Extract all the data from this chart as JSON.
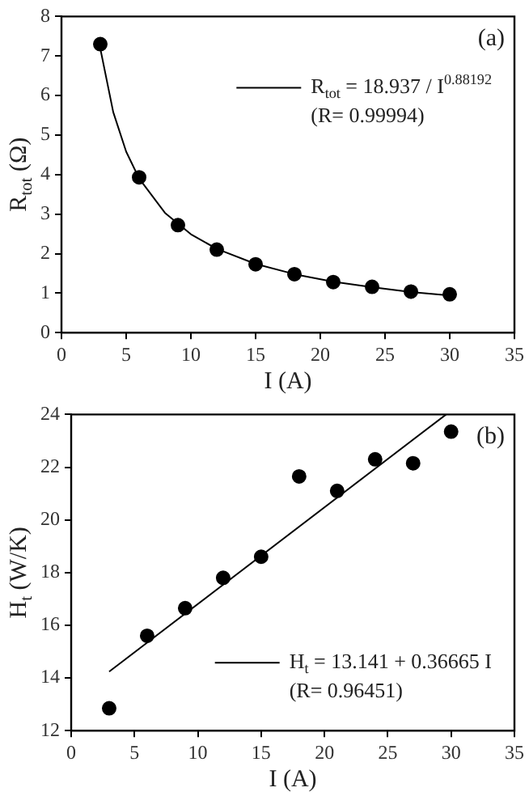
{
  "chart_data": [
    {
      "type": "scatter",
      "xlabel": "I (A)",
      "ylabel": "R$_{tot}$ (Ω)",
      "x": [
        3,
        6,
        9,
        12,
        15,
        18,
        21,
        24,
        27,
        30
      ],
      "series": [
        {
          "type": "scatter",
          "color": "#000000",
          "marker": "circle",
          "values": [
            7.3,
            3.93,
            2.72,
            2.1,
            1.73,
            1.48,
            1.28,
            1.16,
            1.04,
            0.97
          ]
        },
        {
          "type": "line",
          "name": "R$_{tot}$ = 18.937 / I$^{0.88192}$",
          "color": "#000000",
          "marker": "none",
          "line_style": "solid",
          "x": [
            3,
            4,
            5,
            6,
            8,
            10,
            12,
            15,
            18,
            21,
            24,
            27,
            30
          ],
          "values": [
            7.19,
            5.58,
            4.58,
            3.9,
            3.03,
            2.49,
            2.12,
            1.74,
            1.48,
            1.29,
            1.15,
            1.03,
            0.94
          ]
        }
      ],
      "annotations": [
        "(R= 0.99994)",
        "(a)"
      ],
      "xlim": [
        0,
        35
      ],
      "xticks": [
        0,
        5,
        10,
        15,
        20,
        25,
        30,
        35
      ],
      "ylim": [
        0,
        8
      ],
      "yticks": [
        0,
        1,
        2,
        3,
        4,
        5,
        6,
        7,
        8
      ],
      "grid": false,
      "legend": "top right"
    },
    {
      "type": "scatter",
      "xlabel": "I (A)",
      "ylabel": "H$_{t}$ (W/K)",
      "x": [
        3,
        6,
        9,
        12,
        15,
        18,
        21,
        24,
        27,
        30
      ],
      "series": [
        {
          "type": "scatter",
          "color": "#000000",
          "marker": "circle",
          "values": [
            12.85,
            15.6,
            16.65,
            17.8,
            18.6,
            21.65,
            21.1,
            22.3,
            22.15,
            23.35
          ]
        },
        {
          "type": "line",
          "name": "H$_{t}$ = 13.141 + 0.36665 I",
          "color": "#000000",
          "marker": "none",
          "line_style": "solid",
          "x": [
            3,
            29.6
          ],
          "values": [
            14.24,
            24
          ]
        }
      ],
      "annotations": [
        "(R= 0.96451)",
        "(b)"
      ],
      "xlim": [
        0,
        35
      ],
      "xticks": [
        0,
        5,
        10,
        15,
        20,
        25,
        30,
        35
      ],
      "ylim": [
        12,
        24
      ],
      "yticks": [
        12,
        14,
        16,
        18,
        20,
        22,
        24
      ],
      "grid": false,
      "legend": "bottom right"
    }
  ]
}
